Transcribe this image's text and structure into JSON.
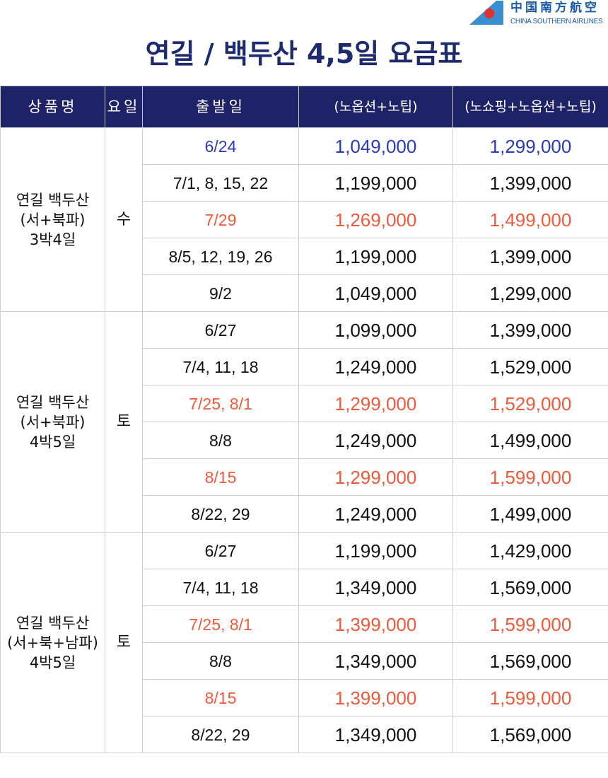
{
  "brand": {
    "chinese": "中国南方航空",
    "english": "CHINA SOUTHERN AIRLINES"
  },
  "title": "연길 / 백두산 4,5일 요금표",
  "headers": [
    "상품명",
    "요일",
    "출발일",
    "(노옵션+노팁)",
    "(노쇼핑+노옵션+노팁)"
  ],
  "colors": {
    "header_bg": "#1e2266",
    "highlight_blue": "#2b3bb8",
    "highlight_red": "#ef5a3a"
  },
  "groups": [
    {
      "name": [
        "연길 백두산",
        "(서+북파)",
        "3박4일"
      ],
      "day": "수",
      "rows": [
        {
          "date": "6/24",
          "p1": "1,049,000",
          "p2": "1,299,000",
          "tone": "blue"
        },
        {
          "date": "7/1, 8, 15, 22",
          "p1": "1,199,000",
          "p2": "1,399,000",
          "tone": ""
        },
        {
          "date": "7/29",
          "p1": "1,269,000",
          "p2": "1,499,000",
          "tone": "red"
        },
        {
          "date": "8/5, 12, 19, 26",
          "p1": "1,199,000",
          "p2": "1,399,000",
          "tone": ""
        },
        {
          "date": "9/2",
          "p1": "1,049,000",
          "p2": "1,299,000",
          "tone": ""
        }
      ]
    },
    {
      "name": [
        "연길 백두산",
        "(서+북파)",
        "4박5일"
      ],
      "day": "토",
      "rows": [
        {
          "date": "6/27",
          "p1": "1,099,000",
          "p2": "1,399,000",
          "tone": ""
        },
        {
          "date": "7/4, 11, 18",
          "p1": "1,249,000",
          "p2": "1,529,000",
          "tone": ""
        },
        {
          "date": "7/25, 8/1",
          "p1": "1,299,000",
          "p2": "1,529,000",
          "tone": "red"
        },
        {
          "date": "8/8",
          "p1": "1,249,000",
          "p2": "1,499,000",
          "tone": ""
        },
        {
          "date": "8/15",
          "p1": "1,299,000",
          "p2": "1,599,000",
          "tone": "red"
        },
        {
          "date": "8/22, 29",
          "p1": "1,249,000",
          "p2": "1,499,000",
          "tone": ""
        }
      ]
    },
    {
      "name": [
        "연길 백두산",
        "(서+북+남파)",
        "4박5일"
      ],
      "day": "토",
      "rows": [
        {
          "date": "6/27",
          "p1": "1,199,000",
          "p2": "1,429,000",
          "tone": ""
        },
        {
          "date": "7/4, 11, 18",
          "p1": "1,349,000",
          "p2": "1,569,000",
          "tone": ""
        },
        {
          "date": "7/25, 8/1",
          "p1": "1,399,000",
          "p2": "1,599,000",
          "tone": "red"
        },
        {
          "date": "8/8",
          "p1": "1,349,000",
          "p2": "1,569,000",
          "tone": ""
        },
        {
          "date": "8/15",
          "p1": "1,399,000",
          "p2": "1,599,000",
          "tone": "red"
        },
        {
          "date": "8/22, 29",
          "p1": "1,349,000",
          "p2": "1,569,000",
          "tone": ""
        }
      ]
    }
  ]
}
